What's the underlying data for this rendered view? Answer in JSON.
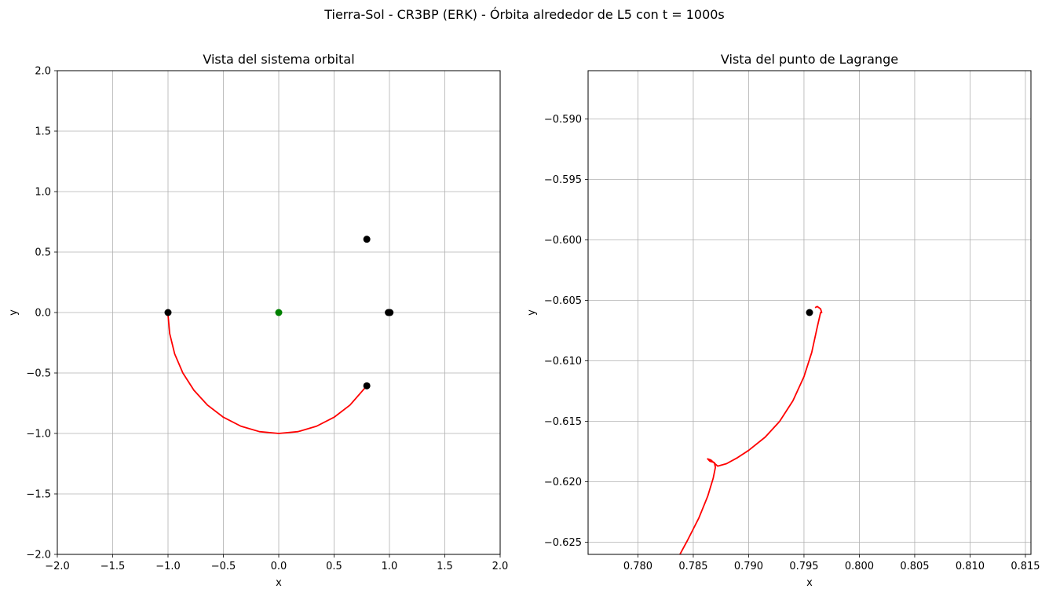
{
  "figure_title": "Tierra-Sol - CR3BP (ERK) - Órbita alrededor de L5 con t = 1000s",
  "colors": {
    "orbit": "#ff0000",
    "point": "#000000",
    "center": "#008000",
    "grid": "#b0b0b0"
  },
  "chart_data": [
    {
      "type": "line",
      "title": "Vista del sistema orbital",
      "xlabel": "x",
      "ylabel": "y",
      "xlim": [
        -2.0,
        2.0
      ],
      "ylim": [
        -2.0,
        2.0
      ],
      "xticks": [
        -2.0,
        -1.5,
        -1.0,
        -0.5,
        0.0,
        0.5,
        1.0,
        1.5,
        2.0
      ],
      "yticks": [
        -2.0,
        -1.5,
        -1.0,
        -0.5,
        0.0,
        0.5,
        1.0,
        1.5,
        2.0
      ],
      "xtick_labels": [
        "−2.0",
        "−1.5",
        "−1.0",
        "−0.5",
        "0.0",
        "0.5",
        "1.0",
        "1.5",
        "2.0"
      ],
      "ytick_labels": [
        "−2.0",
        "−1.5",
        "−1.0",
        "−0.5",
        "0.0",
        "0.5",
        "1.0",
        "1.5",
        "2.0"
      ],
      "grid": true,
      "orbit": {
        "x": [
          -1.0,
          -0.985,
          -0.94,
          -0.866,
          -0.766,
          -0.643,
          -0.5,
          -0.342,
          -0.174,
          0.0,
          0.174,
          0.342,
          0.5,
          0.643,
          0.7955
        ],
        "y": [
          -0.02,
          -0.174,
          -0.342,
          -0.5,
          -0.643,
          -0.766,
          -0.866,
          -0.94,
          -0.985,
          -1.0,
          -0.985,
          -0.94,
          -0.866,
          -0.766,
          -0.606
        ]
      },
      "points": [
        {
          "x": -1.0,
          "y": 0.0,
          "color": "#000000"
        },
        {
          "x": 0.0,
          "y": 0.0,
          "color": "#008000"
        },
        {
          "x": 0.99,
          "y": 0.0,
          "color": "#000000"
        },
        {
          "x": 1.005,
          "y": 0.0,
          "color": "#000000"
        },
        {
          "x": 0.7955,
          "y": 0.606,
          "color": "#000000"
        },
        {
          "x": 0.7955,
          "y": -0.606,
          "color": "#000000"
        }
      ]
    },
    {
      "type": "line",
      "title": "Vista del punto de Lagrange",
      "xlabel": "x",
      "ylabel": "y",
      "xlim": [
        0.7755,
        0.8155
      ],
      "ylim": [
        -0.626,
        -0.586
      ],
      "xticks": [
        0.78,
        0.785,
        0.79,
        0.795,
        0.8,
        0.805,
        0.81,
        0.815
      ],
      "yticks": [
        -0.59,
        -0.595,
        -0.6,
        -0.605,
        -0.61,
        -0.615,
        -0.62,
        -0.625
      ],
      "xtick_labels": [
        "0.780",
        "0.785",
        "0.790",
        "0.795",
        "0.800",
        "0.805",
        "0.810",
        "0.815"
      ],
      "ytick_labels": [
        "−0.590",
        "−0.595",
        "−0.600",
        "−0.605",
        "−0.610",
        "−0.615",
        "−0.620",
        "−0.625"
      ],
      "grid": true,
      "orbit": {
        "x": [
          0.7835,
          0.7845,
          0.7855,
          0.7863,
          0.7868,
          0.787,
          0.7869,
          0.7865,
          0.7863,
          0.7866,
          0.7872,
          0.788,
          0.789,
          0.79,
          0.7915,
          0.7928,
          0.794,
          0.795,
          0.7957,
          0.7962,
          0.7965,
          0.7966,
          0.7965,
          0.7962,
          0.796
        ],
        "y": [
          -0.6265,
          -0.6248,
          -0.623,
          -0.6212,
          -0.6197,
          -0.6188,
          -0.6184,
          -0.6183,
          -0.6181,
          -0.6182,
          -0.6187,
          -0.6185,
          -0.618,
          -0.6174,
          -0.6163,
          -0.615,
          -0.6133,
          -0.6113,
          -0.6093,
          -0.6072,
          -0.606,
          -0.606,
          -0.6057,
          -0.6055,
          -0.6056
        ]
      },
      "points": [
        {
          "x": 0.7955,
          "y": -0.606,
          "color": "#000000"
        }
      ]
    }
  ]
}
